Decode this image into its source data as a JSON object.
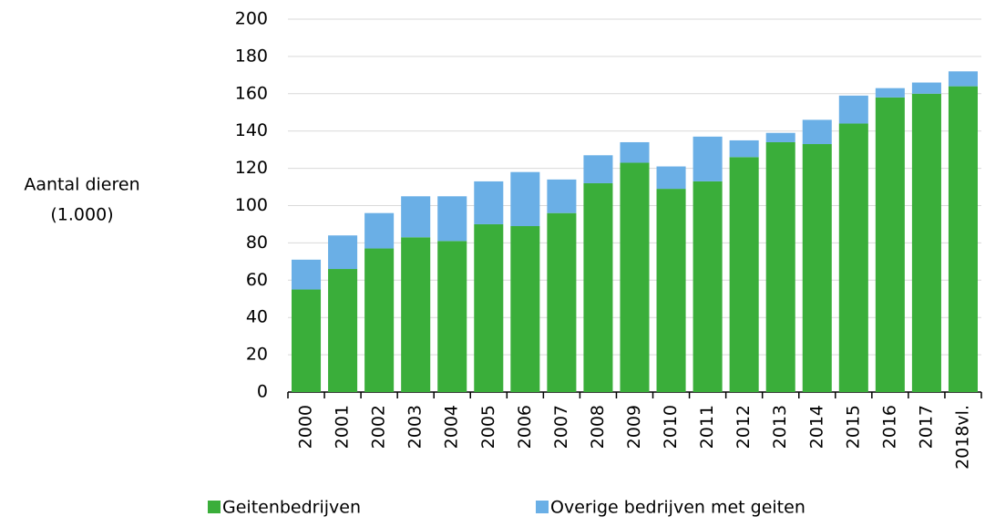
{
  "chart_data": {
    "type": "stacked_bar",
    "ylabel": [
      "Aantal dieren",
      "(1.000)"
    ],
    "categories": [
      "2000",
      "2001",
      "2002",
      "2003",
      "2004",
      "2005",
      "2006",
      "2007",
      "2008",
      "2009",
      "2010",
      "2011",
      "2012",
      "2013",
      "2014",
      "2015",
      "2016",
      "2017",
      "2018vl."
    ],
    "series": [
      {
        "name": "Geitenbedrijven",
        "color": "#3aae3a",
        "values": [
          55,
          66,
          77,
          83,
          81,
          90,
          89,
          96,
          112,
          123,
          109,
          113,
          126,
          134,
          133,
          144,
          158,
          160,
          164
        ]
      },
      {
        "name": "Overige bedrijven met geiten",
        "color": "#6aafe6",
        "values": [
          16,
          18,
          19,
          22,
          24,
          23,
          29,
          18,
          15,
          11,
          12,
          24,
          9,
          5,
          13,
          15,
          5,
          6,
          8
        ]
      }
    ],
    "ylim": [
      0,
      200
    ],
    "yticks": [
      0,
      20,
      40,
      60,
      80,
      100,
      120,
      140,
      160,
      180,
      200
    ],
    "grid": true,
    "legend": "bottom"
  }
}
